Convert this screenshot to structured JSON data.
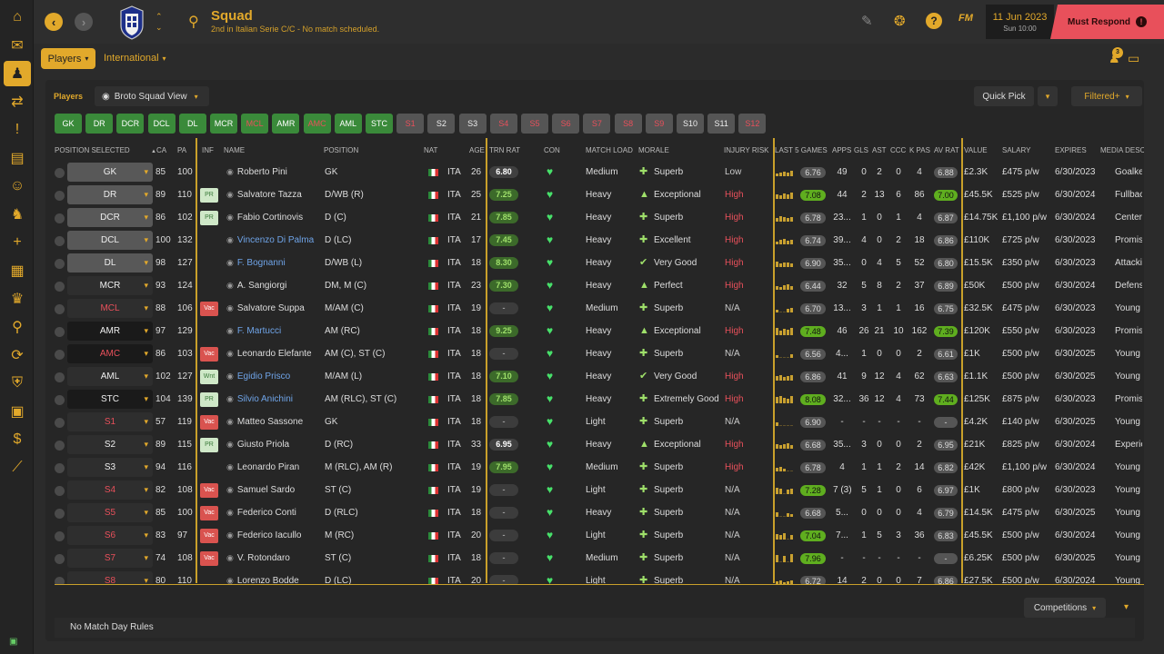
{
  "sidebar": {
    "items": [
      {
        "name": "home-icon",
        "glyph": "⌂"
      },
      {
        "name": "inbox-icon",
        "glyph": "✉"
      },
      {
        "name": "squad-icon",
        "glyph": "♟"
      },
      {
        "name": "dynamics-icon",
        "glyph": "⇄"
      },
      {
        "name": "alert-icon",
        "glyph": "!"
      },
      {
        "name": "clipboard-icon",
        "glyph": "▤"
      },
      {
        "name": "staff-icon",
        "glyph": "☺"
      },
      {
        "name": "training-icon",
        "glyph": "♞"
      },
      {
        "name": "medical-icon",
        "glyph": "+"
      },
      {
        "name": "calendar-icon",
        "glyph": "▦"
      },
      {
        "name": "trophy-icon",
        "glyph": "♛"
      },
      {
        "name": "scouting-icon",
        "glyph": "⚲"
      },
      {
        "name": "transfers-icon",
        "glyph": "⟳"
      },
      {
        "name": "club-icon",
        "glyph": "⛨"
      },
      {
        "name": "briefcase-icon",
        "glyph": "▣"
      },
      {
        "name": "finances-icon",
        "glyph": "$"
      },
      {
        "name": "development-icon",
        "glyph": "⟋"
      }
    ]
  },
  "topbar": {
    "title": "Squad",
    "subtitle": "2nd in Italian Serie C/C - No match scheduled.",
    "fm_label": "FM",
    "date": "11 Jun 2023",
    "time": "Sun 10:00",
    "must_respond": "Must Respond",
    "back": "‹",
    "forward": "›",
    "search_glyph": "⚲",
    "edit_glyph": "✎",
    "brain_glyph": "❂",
    "help_glyph": "?",
    "alert_glyph": "!"
  },
  "subnav": {
    "players_tab": "Players",
    "international_tab": "International",
    "notif_count": "3"
  },
  "panel": {
    "label": "Players",
    "view": "Broto Squad View",
    "quick_pick": "Quick Pick",
    "filtered": "Filtered+",
    "competitions": "Competitions",
    "match_day_rules": "No Match Day Rules"
  },
  "position_buttons": [
    "GK",
    "DR",
    "DCR",
    "DCL",
    "DL",
    "MCR",
    "MCL",
    "AMR",
    "AMC",
    "AML",
    "STC",
    "S1",
    "S2",
    "S3",
    "S4",
    "S5",
    "S6",
    "S7",
    "S8",
    "S9",
    "S10",
    "S11",
    "S12"
  ],
  "headers": {
    "position": "POSITION SELECTED",
    "ca": "CA",
    "pa": "PA",
    "inf": "INF",
    "name": "NAME",
    "position2": "POSITION",
    "nat": "NAT",
    "age": "AGE",
    "trn": "TRN RAT",
    "con": "CON",
    "match_load": "MATCH LOAD",
    "morale": "MORALE",
    "injury": "INJURY RISK",
    "last5": "LAST 5 GAMES",
    "apps": "APPS",
    "gls": "GLS",
    "ast": "AST",
    "ccc": "CCC",
    "kpas": "K PAS",
    "avrat": "AV RAT",
    "value": "VALUE",
    "salary": "SALARY",
    "expires": "EXPIRES",
    "media": "MEDIA DESC"
  },
  "rows": [
    {
      "sel": "GK",
      "ca": "85",
      "pa": "100",
      "inf": "",
      "name": "Roberto Pini",
      "pos": "GK",
      "nat": "ITA",
      "age": "26",
      "trn": "6.80",
      "load": "Medium",
      "morale": "Superb",
      "inj": "Low",
      "ag": "6.76",
      "apps": "49",
      "gls": "0",
      "ast": "2",
      "ccc": "0",
      "kpas": "4",
      "av": "6.88",
      "val": "£2.3K",
      "sal": "£475 p/w",
      "exp": "6/30/2023",
      "media": "Goalkeeper"
    },
    {
      "sel": "DR",
      "ca": "89",
      "pa": "110",
      "inf": "PR",
      "name": "Salvatore Tazza",
      "pos": "D/WB (R)",
      "nat": "ITA",
      "age": "25",
      "trn": "7.25",
      "load": "Heavy",
      "morale": "Exceptional",
      "inj": "High",
      "ag": "7.08",
      "apps": "44",
      "gls": "2",
      "ast": "13",
      "ccc": "6",
      "kpas": "86",
      "av": "7.00",
      "val": "£45.5K",
      "sal": "£525 p/w",
      "exp": "6/30/2024",
      "media": "Fullback"
    },
    {
      "sel": "DCR",
      "ca": "86",
      "pa": "102",
      "inf": "PR",
      "name": "Fabio Cortinovis",
      "pos": "D (C)",
      "nat": "ITA",
      "age": "21",
      "trn": "7.85",
      "load": "Heavy",
      "morale": "Superb",
      "inj": "High",
      "ag": "6.78",
      "apps": "23...",
      "gls": "1",
      "ast": "0",
      "ccc": "1",
      "kpas": "4",
      "av": "6.87",
      "val": "£14.75K",
      "sal": "£1,100 p/w",
      "exp": "6/30/2024",
      "media": "Center"
    },
    {
      "sel": "DCL",
      "ca": "100",
      "pa": "132",
      "inf": "",
      "name": "Vincenzo Di Palma",
      "pos": "D (LC)",
      "nat": "ITA",
      "age": "17",
      "trn": "7.45",
      "load": "Heavy",
      "morale": "Excellent",
      "inj": "High",
      "ag": "6.74",
      "apps": "39...",
      "gls": "4",
      "ast": "0",
      "ccc": "2",
      "kpas": "18",
      "av": "6.86",
      "val": "£110K",
      "sal": "£725 p/w",
      "exp": "6/30/2023",
      "media": "Promising"
    },
    {
      "sel": "DL",
      "ca": "98",
      "pa": "127",
      "inf": "",
      "name": "F. Bognanni",
      "pos": "D/WB (L)",
      "nat": "ITA",
      "age": "18",
      "trn": "8.30",
      "load": "Heavy",
      "morale": "Very Good",
      "inj": "High",
      "ag": "6.90",
      "apps": "35...",
      "gls": "0",
      "ast": "4",
      "ccc": "5",
      "kpas": "52",
      "av": "6.80",
      "val": "£15.5K",
      "sal": "£350 p/w",
      "exp": "6/30/2023",
      "media": "Attacking"
    },
    {
      "sel": "MCR",
      "ca": "93",
      "pa": "124",
      "inf": "",
      "name": "A. Sangiorgi",
      "pos": "DM, M (C)",
      "nat": "ITA",
      "age": "23",
      "trn": "7.30",
      "load": "Heavy",
      "morale": "Perfect",
      "inj": "High",
      "ag": "6.44",
      "apps": "32",
      "gls": "5",
      "ast": "8",
      "ccc": "2",
      "kpas": "37",
      "av": "6.89",
      "val": "£50K",
      "sal": "£500 p/w",
      "exp": "6/30/2024",
      "media": "Defensive"
    },
    {
      "sel": "MCL",
      "ca": "88",
      "pa": "106",
      "inf": "Vac",
      "name": "Salvatore Suppa",
      "pos": "M/AM (C)",
      "nat": "ITA",
      "age": "19",
      "trn": "-",
      "load": "Medium",
      "morale": "Superb",
      "inj": "N/A",
      "ag": "6.70",
      "apps": "13...",
      "gls": "3",
      "ast": "1",
      "ccc": "1",
      "kpas": "16",
      "av": "6.75",
      "val": "£32.5K",
      "sal": "£475 p/w",
      "exp": "6/30/2023",
      "media": "Young"
    },
    {
      "sel": "AMR",
      "ca": "97",
      "pa": "129",
      "inf": "",
      "name": "F. Martucci",
      "pos": "AM (RC)",
      "nat": "ITA",
      "age": "18",
      "trn": "9.25",
      "load": "Heavy",
      "morale": "Exceptional",
      "inj": "High",
      "ag": "7.48",
      "apps": "46",
      "gls": "26",
      "ast": "21",
      "ccc": "10",
      "kpas": "162",
      "av": "7.39",
      "val": "£120K",
      "sal": "£550 p/w",
      "exp": "6/30/2023",
      "media": "Promising"
    },
    {
      "sel": "AMC",
      "ca": "86",
      "pa": "103",
      "inf": "Vac",
      "name": "Leonardo Elefante",
      "pos": "AM (C), ST (C)",
      "nat": "ITA",
      "age": "18",
      "trn": "-",
      "load": "Heavy",
      "morale": "Superb",
      "inj": "N/A",
      "ag": "6.56",
      "apps": "4...",
      "gls": "1",
      "ast": "0",
      "ccc": "0",
      "kpas": "2",
      "av": "6.61",
      "val": "£1K",
      "sal": "£500 p/w",
      "exp": "6/30/2025",
      "media": "Young"
    },
    {
      "sel": "AML",
      "ca": "102",
      "pa": "127",
      "inf": "Wnt",
      "name": "Egidio Prisco",
      "pos": "M/AM (L)",
      "nat": "ITA",
      "age": "18",
      "trn": "7.10",
      "load": "Heavy",
      "morale": "Very Good",
      "inj": "High",
      "ag": "6.86",
      "apps": "41",
      "gls": "9",
      "ast": "12",
      "ccc": "4",
      "kpas": "62",
      "av": "6.63",
      "val": "£1.1K",
      "sal": "£500 p/w",
      "exp": "6/30/2025",
      "media": "Young"
    },
    {
      "sel": "STC",
      "ca": "104",
      "pa": "139",
      "inf": "PR",
      "name": "Silvio Anichini",
      "pos": "AM (RLC), ST (C)",
      "nat": "ITA",
      "age": "18",
      "trn": "7.85",
      "load": "Heavy",
      "morale": "Extremely Good",
      "inj": "High",
      "ag": "8.08",
      "apps": "32...",
      "gls": "36",
      "ast": "12",
      "ccc": "4",
      "kpas": "73",
      "av": "7.44",
      "val": "£125K",
      "sal": "£875 p/w",
      "exp": "6/30/2023",
      "media": "Promising"
    },
    {
      "sel": "S1",
      "ca": "57",
      "pa": "119",
      "inf": "Vac",
      "name": "Matteo Sassone",
      "pos": "GK",
      "nat": "ITA",
      "age": "18",
      "trn": "-",
      "load": "Light",
      "morale": "Superb",
      "inj": "N/A",
      "ag": "6.90",
      "apps": "-",
      "gls": "-",
      "ast": "-",
      "ccc": "-",
      "kpas": "-",
      "av": "-",
      "val": "£4.2K",
      "sal": "£140 p/w",
      "exp": "6/30/2025",
      "media": "Young"
    },
    {
      "sel": "S2",
      "ca": "89",
      "pa": "115",
      "inf": "PR",
      "name": "Giusto Priola",
      "pos": "D (RC)",
      "nat": "ITA",
      "age": "33",
      "trn": "6.95",
      "load": "Heavy",
      "morale": "Exceptional",
      "inj": "High",
      "ag": "6.68",
      "apps": "35...",
      "gls": "3",
      "ast": "0",
      "ccc": "0",
      "kpas": "2",
      "av": "6.95",
      "val": "£21K",
      "sal": "£825 p/w",
      "exp": "6/30/2024",
      "media": "Experienced"
    },
    {
      "sel": "S3",
      "ca": "94",
      "pa": "116",
      "inf": "",
      "name": "Leonardo Piran",
      "pos": "M (RLC), AM (R)",
      "nat": "ITA",
      "age": "19",
      "trn": "7.95",
      "load": "Medium",
      "morale": "Superb",
      "inj": "High",
      "ag": "6.78",
      "apps": "4",
      "gls": "1",
      "ast": "1",
      "ccc": "2",
      "kpas": "14",
      "av": "6.82",
      "val": "£42K",
      "sal": "£1,100 p/w",
      "exp": "6/30/2024",
      "media": "Young"
    },
    {
      "sel": "S4",
      "ca": "82",
      "pa": "108",
      "inf": "Vac",
      "name": "Samuel Sardo",
      "pos": "ST (C)",
      "nat": "ITA",
      "age": "19",
      "trn": "-",
      "load": "Light",
      "morale": "Superb",
      "inj": "N/A",
      "ag": "7.28",
      "apps": "7 (3)",
      "gls": "5",
      "ast": "1",
      "ccc": "0",
      "kpas": "6",
      "av": "6.97",
      "val": "£1K",
      "sal": "£800 p/w",
      "exp": "6/30/2023",
      "media": "Young"
    },
    {
      "sel": "S5",
      "ca": "85",
      "pa": "100",
      "inf": "Vac",
      "name": "Federico Conti",
      "pos": "D (RLC)",
      "nat": "ITA",
      "age": "18",
      "trn": "-",
      "load": "Heavy",
      "morale": "Superb",
      "inj": "N/A",
      "ag": "6.68",
      "apps": "5...",
      "gls": "0",
      "ast": "0",
      "ccc": "0",
      "kpas": "4",
      "av": "6.79",
      "val": "£14.5K",
      "sal": "£475 p/w",
      "exp": "6/30/2025",
      "media": "Young"
    },
    {
      "sel": "S6",
      "ca": "83",
      "pa": "97",
      "inf": "Vac",
      "name": "Federico Iacullo",
      "pos": "M (RC)",
      "nat": "ITA",
      "age": "20",
      "trn": "-",
      "load": "Light",
      "morale": "Superb",
      "inj": "N/A",
      "ag": "7.04",
      "apps": "7...",
      "gls": "1",
      "ast": "5",
      "ccc": "3",
      "kpas": "36",
      "av": "6.83",
      "val": "£45.5K",
      "sal": "£500 p/w",
      "exp": "6/30/2024",
      "media": "Young"
    },
    {
      "sel": "S7",
      "ca": "74",
      "pa": "108",
      "inf": "Vac",
      "name": "V. Rotondaro",
      "pos": "ST (C)",
      "nat": "ITA",
      "age": "18",
      "trn": "-",
      "load": "Medium",
      "morale": "Superb",
      "inj": "N/A",
      "ag": "7.96",
      "apps": "-",
      "gls": "-",
      "ast": "-",
      "ccc": "-",
      "kpas": "-",
      "av": "-",
      "val": "£6.25K",
      "sal": "£500 p/w",
      "exp": "6/30/2025",
      "media": "Young"
    },
    {
      "sel": "S8",
      "ca": "80",
      "pa": "110",
      "inf": "",
      "name": "Lorenzo Bodde",
      "pos": "D (LC)",
      "nat": "ITA",
      "age": "20",
      "trn": "-",
      "load": "Light",
      "morale": "Superb",
      "inj": "N/A",
      "ag": "6.72",
      "apps": "14",
      "gls": "2",
      "ast": "0",
      "ccc": "0",
      "kpas": "7",
      "av": "6.86",
      "val": "£27.5K",
      "sal": "£500 p/w",
      "exp": "6/30/2024",
      "media": "Young"
    }
  ]
}
